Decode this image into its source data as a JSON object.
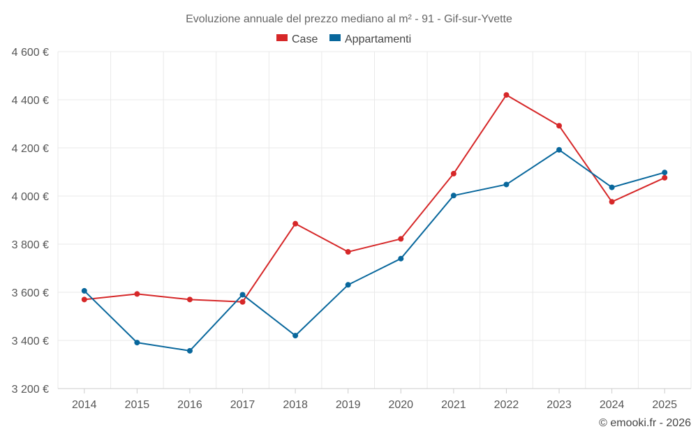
{
  "chart_data": {
    "type": "line",
    "title": "Evoluzione annuale del prezzo mediano al m² - 91 - Gif-sur-Yvette",
    "categories": [
      "2014",
      "2015",
      "2016",
      "2017",
      "2018",
      "2019",
      "2020",
      "2021",
      "2022",
      "2023",
      "2024",
      "2025"
    ],
    "ylim": [
      3200,
      4600
    ],
    "yticks": [
      3200,
      3400,
      3600,
      3800,
      4000,
      4200,
      4400,
      4600
    ],
    "ytick_labels": [
      "3 200 €",
      "3 400 €",
      "3 600 €",
      "3 800 €",
      "4 000 €",
      "4 200 €",
      "4 400 €",
      "4 600 €"
    ],
    "series": [
      {
        "name": "Case",
        "color": "#d62728",
        "values": [
          3570,
          3593,
          3570,
          3560,
          3885,
          3768,
          3822,
          4093,
          4420,
          4292,
          3976,
          4076
        ]
      },
      {
        "name": "Appartamenti",
        "color": "#08679c",
        "values": [
          3606,
          3391,
          3357,
          3590,
          3420,
          3631,
          3740,
          4002,
          4048,
          4192,
          4036,
          4098
        ]
      }
    ],
    "grid": true,
    "legend_position": "top-center"
  },
  "credit": "© emooki.fr - 2026"
}
